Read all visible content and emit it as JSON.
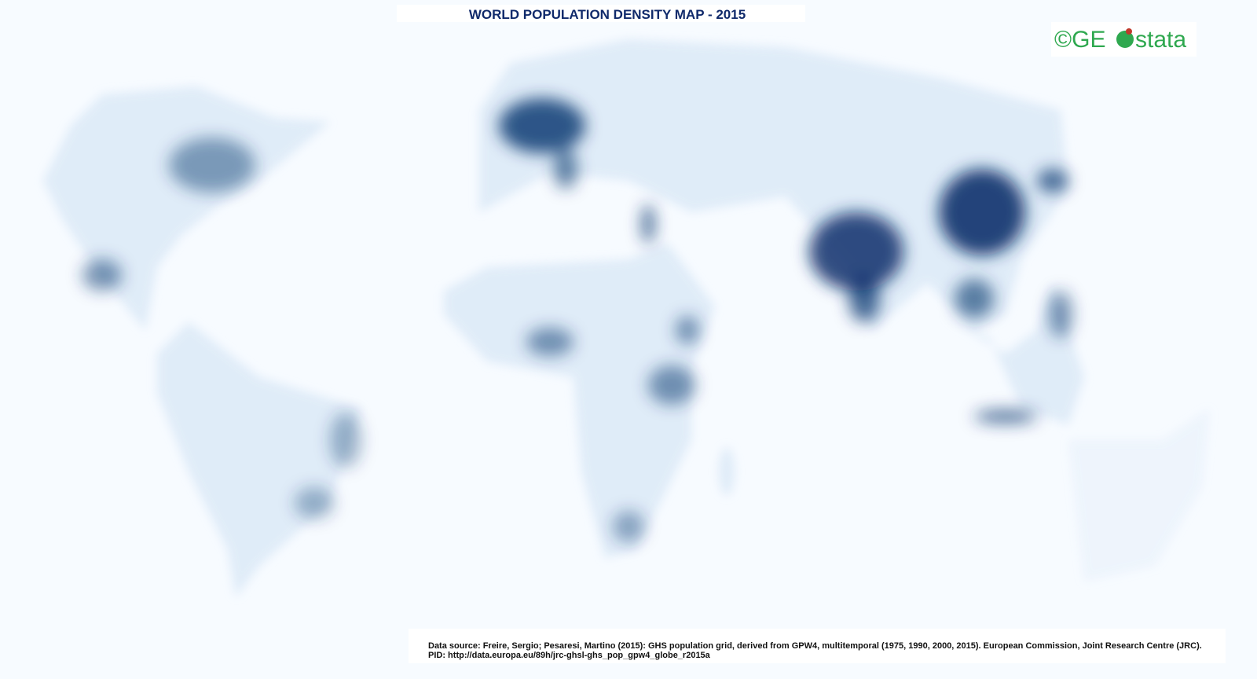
{
  "title": "WORLD POPULATION DENSITY MAP - 2015",
  "logo": {
    "prefix": "©GE",
    "suffix": "stata"
  },
  "source": {
    "line1": "Data source: Freire, Sergio; Pesaresi, Martino (2015):  GHS population grid, derived from GPW4, multitemporal (1975, 1990, 2000, 2015). European Commission, Joint Research Centre (JRC).",
    "line2": "PID: http://data.europa.eu/89h/jrc-ghsl-ghs_pop_gpw4_globe_r2015a"
  }
}
